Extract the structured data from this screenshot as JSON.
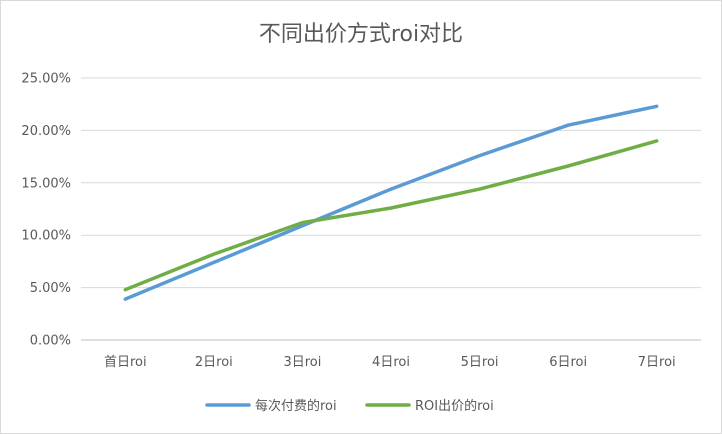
{
  "chart_data": {
    "type": "line",
    "title": "不同出价方式roi对比",
    "xlabel": "",
    "ylabel": "",
    "categories": [
      "首日roi",
      "2日roi",
      "3日roi",
      "4日roi",
      "5日roi",
      "6日roi",
      "7日roi"
    ],
    "yticks": [
      "0.00%",
      "5.00%",
      "10.00%",
      "15.00%",
      "20.00%",
      "25.00%"
    ],
    "ylim": [
      0,
      25
    ],
    "grid": true,
    "legend_position": "bottom",
    "series": [
      {
        "name": "每次付费的roi",
        "color": "#5b9bd5",
        "values": [
          3.9,
          7.4,
          10.9,
          14.4,
          17.6,
          20.5,
          22.3
        ]
      },
      {
        "name": "ROI出价的roi",
        "color": "#70ad47",
        "values": [
          4.8,
          8.2,
          11.2,
          12.6,
          14.4,
          16.6,
          19.0
        ]
      }
    ]
  }
}
